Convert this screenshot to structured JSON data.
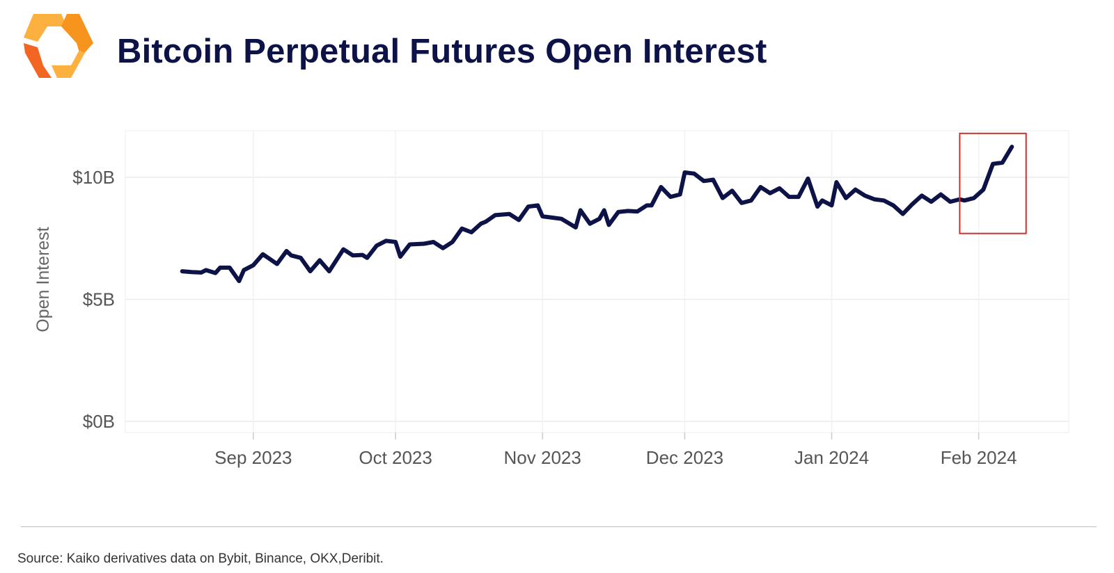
{
  "header": {
    "title": "Bitcoin Perpetual Futures Open Interest",
    "logo_name": "kaiko-logo",
    "logo_colors": [
      "#f7941d",
      "#fbb040",
      "#f26522"
    ]
  },
  "footer": {
    "source": "Source: Kaiko derivatives data on Bybit, Binance, OKX,Deribit."
  },
  "chart_data": {
    "type": "line",
    "title": "Bitcoin Perpetual Futures Open Interest",
    "xlabel": "",
    "ylabel": "Open Interest",
    "ylim": [
      0,
      11.8
    ],
    "y_unit": "$B",
    "y_ticks": [
      0,
      5,
      10
    ],
    "y_tick_labels": [
      "$0B",
      "$5B",
      "$10B"
    ],
    "x_ticks": [
      "2023-09-01",
      "2023-10-01",
      "2023-11-01",
      "2023-12-01",
      "2024-01-01",
      "2024-02-01"
    ],
    "x_tick_labels": [
      "Sep 2023",
      "Oct 2023",
      "Nov 2023",
      "Dec 2023",
      "Jan 2024",
      "Feb 2024"
    ],
    "grid": true,
    "line_color": "#0d1247",
    "highlight": {
      "x_range": [
        "2024-01-28",
        "2024-02-11"
      ],
      "y_range": [
        7.7,
        11.8
      ],
      "color": "#d32f2f"
    },
    "series": [
      {
        "x": [
          "2023-08-17",
          "2023-08-19",
          "2023-08-21",
          "2023-08-22",
          "2023-08-24",
          "2023-08-25",
          "2023-08-27",
          "2023-08-29",
          "2023-08-30",
          "2023-09-01",
          "2023-09-03",
          "2023-09-06",
          "2023-09-08",
          "2023-09-09",
          "2023-09-11",
          "2023-09-13",
          "2023-09-15",
          "2023-09-17",
          "2023-09-20",
          "2023-09-22",
          "2023-09-24",
          "2023-09-25",
          "2023-09-27",
          "2023-09-29",
          "2023-10-01",
          "2023-10-02",
          "2023-10-04",
          "2023-10-07",
          "2023-10-09",
          "2023-10-11",
          "2023-10-13",
          "2023-10-15",
          "2023-10-17",
          "2023-10-19",
          "2023-10-20",
          "2023-10-22",
          "2023-10-25",
          "2023-10-27",
          "2023-10-29",
          "2023-10-31",
          "2023-11-01",
          "2023-11-03",
          "2023-11-05",
          "2023-11-08",
          "2023-11-09",
          "2023-11-11",
          "2023-11-13",
          "2023-11-14",
          "2023-11-15",
          "2023-11-17",
          "2023-11-19",
          "2023-11-21",
          "2023-11-23",
          "2023-11-24",
          "2023-11-26",
          "2023-11-28",
          "2023-11-30",
          "2023-12-01",
          "2023-12-03",
          "2023-12-05",
          "2023-12-07",
          "2023-12-09",
          "2023-12-11",
          "2023-12-13",
          "2023-12-15",
          "2023-12-17",
          "2023-12-19",
          "2023-12-21",
          "2023-12-23",
          "2023-12-25",
          "2023-12-27",
          "2023-12-29",
          "2023-12-30",
          "2024-01-01",
          "2024-01-02",
          "2024-01-04",
          "2024-01-06",
          "2024-01-08",
          "2024-01-10",
          "2024-01-12",
          "2024-01-14",
          "2024-01-16",
          "2024-01-18",
          "2024-01-20",
          "2024-01-22",
          "2024-01-24",
          "2024-01-26",
          "2024-01-28",
          "2024-01-29",
          "2024-01-31",
          "2024-02-02",
          "2024-02-04",
          "2024-02-06",
          "2024-02-08"
        ],
        "values": [
          6.15,
          6.12,
          6.1,
          6.2,
          6.08,
          6.3,
          6.3,
          5.75,
          6.2,
          6.4,
          6.85,
          6.45,
          6.98,
          6.8,
          6.7,
          6.15,
          6.6,
          6.15,
          7.05,
          6.8,
          6.82,
          6.7,
          7.2,
          7.4,
          7.35,
          6.75,
          7.25,
          7.28,
          7.35,
          7.1,
          7.35,
          7.9,
          7.75,
          8.1,
          8.18,
          8.45,
          8.5,
          8.25,
          8.8,
          8.85,
          8.4,
          8.35,
          8.3,
          7.95,
          8.65,
          8.1,
          8.3,
          8.65,
          8.05,
          8.58,
          8.62,
          8.6,
          8.85,
          8.85,
          9.6,
          9.2,
          9.3,
          10.2,
          10.15,
          9.85,
          9.9,
          9.15,
          9.45,
          8.95,
          9.05,
          9.6,
          9.35,
          9.55,
          9.2,
          9.2,
          9.95,
          8.8,
          9.05,
          8.85,
          9.8,
          9.15,
          9.5,
          9.25,
          9.1,
          9.05,
          8.85,
          8.5,
          8.9,
          9.25,
          9.0,
          9.3,
          9.0,
          9.1,
          9.05,
          9.15,
          9.5,
          10.55,
          10.6,
          11.25
        ]
      }
    ]
  }
}
